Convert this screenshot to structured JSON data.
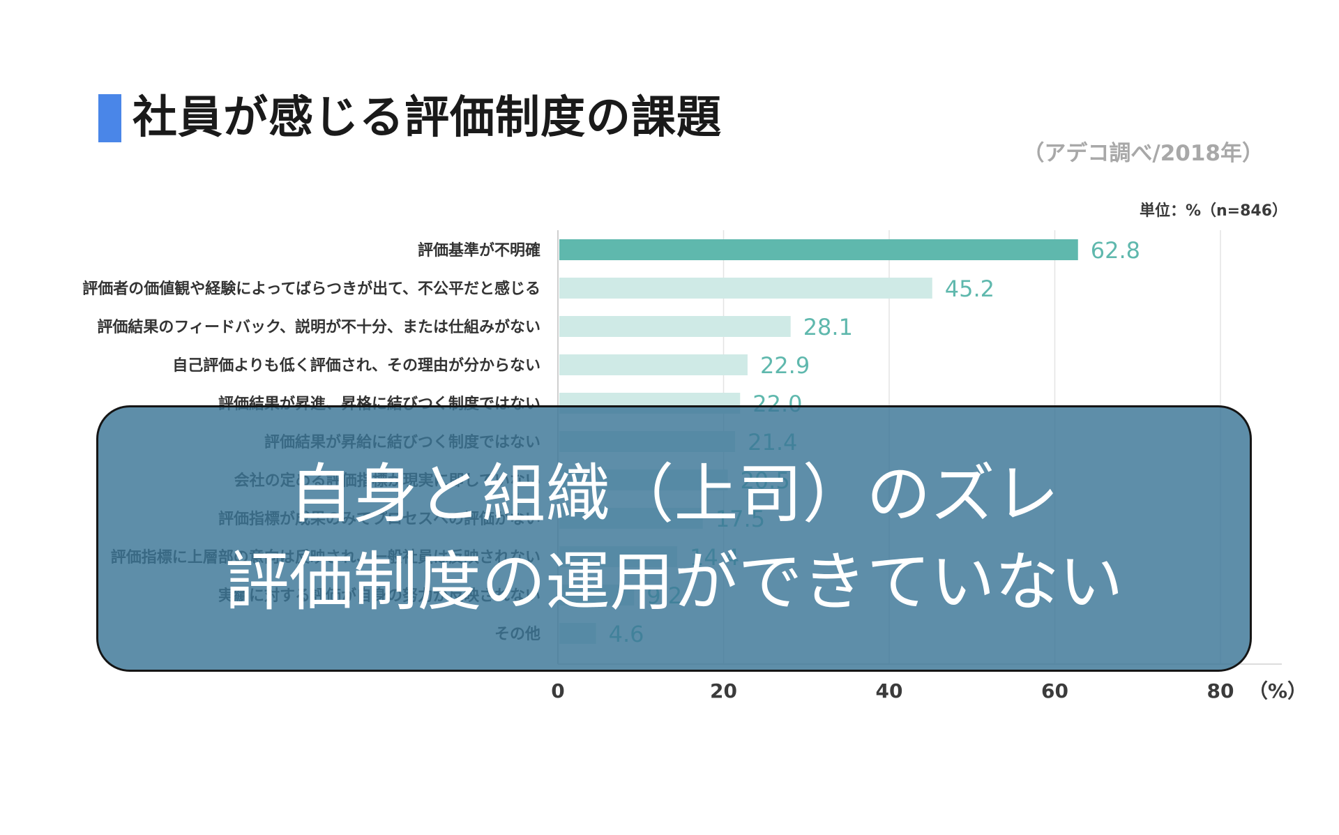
{
  "slide": {
    "title": "社員が感じる評価制度の課題",
    "source": "（アデコ調べ/2018年）",
    "unit": "単位：%（n=846）",
    "accent_color": "#4a86e8"
  },
  "overlay": {
    "line1": "自身と組織（上司）のズレ",
    "line2": "評価制度の運用ができていない",
    "background_color": "#3b7596"
  },
  "chart_data": {
    "type": "bar",
    "orientation": "horizontal",
    "categories": [
      "評価基準が不明確",
      "評価者の価値観や経験によってばらつきが出て、不公平だと感じる",
      "評価結果のフィードバック、説明が不十分、または仕組みがない",
      "自己評価よりも低く評価され、その理由が分からない",
      "評価結果が昇進、昇格に結びつく制度ではない",
      "評価結果が昇給に結びつく制度ではない",
      "会社の定める評価指標が現実に即していない",
      "評価指標が成果のみでプロセスへの評価がない",
      "評価指標に上層部の意向は反映され、一般社員は反映されない",
      "実績に対する評価が自身の努力が反映されない",
      "その他"
    ],
    "values": [
      62.8,
      45.2,
      28.1,
      22.9,
      22.0,
      21.4,
      20.5,
      17.5,
      14.4,
      9.2,
      4.6
    ],
    "value_labels": [
      "62.8",
      "45.2",
      "28.1",
      "22.9",
      "22.0",
      "21.4",
      "20.5",
      "17.5",
      "14.4",
      "9.2",
      "4.6"
    ],
    "xlim": [
      0,
      80
    ],
    "xticks": [
      0,
      20,
      40,
      60,
      80
    ],
    "xtick_labels": [
      "0",
      "20",
      "40",
      "60",
      "80"
    ],
    "x_unit_label": "（%）",
    "grid": true,
    "highlight_color": "#5fb8ad",
    "bar_color": "#cfeae6",
    "label_color": "#5fb8ad",
    "category_label_color": "#333333"
  }
}
